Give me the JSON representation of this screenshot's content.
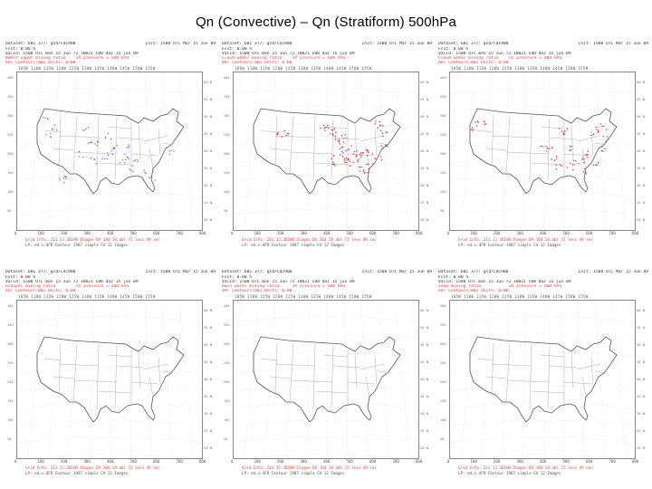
{
  "title": "Qn (Convective) – Qn (Stratiform)  500hPa",
  "colors": {
    "header_red": "#dd4444",
    "convective_blue": "#6666dd",
    "stratiform_red": "#dd2222",
    "map_line": "#555555"
  },
  "panels": [
    {
      "dataset": "Dataset: 601  377: gsd/Cdc900",
      "init": "Init: 1500 UTC Mar 15 Jun 09",
      "fcst": "Fcst:    0.00 h",
      "valid": "Valid: 1500 UTC mon 15 Jun  72 10021 C00 daz 15 jun 09",
      "field": "Water vapor mixing ratio",
      "level": "at pressure = 500 hPa",
      "units": "AAT  Contours:001 Units: 0.00",
      "footer1": "Grid Info: 211  JJ  3D1HR Dlagon  DX 104  18 abl  72 levs  49 sec",
      "footer2": "LP: ed.v.4FR Contour 1987 simple CA 12 Images",
      "points": "conv"
    },
    {
      "dataset": "Dataset: 601  377: gsd/Cdc900",
      "init": "Init: 1500 UTC Mar 15 Jun 09",
      "fcst": "Fcst:    0.00 h",
      "valid": "Valid: 1500 UTC mon 15 Jun  72 10021 C00 daz 15 jun 09",
      "field": "Cloud water mixing ratio",
      "level": "at pressure = 500 hPa",
      "units": "AAT  Contours:001 Units: 0.00",
      "footer1": "Grid Info: 211  JJ  3D1HR Dlagon  DX 104  18 abl  72 levs  49 sec",
      "footer2": "LP: ed.v.4FR Contour 1987 simple CA 12 Images",
      "points": "strat1"
    },
    {
      "dataset": "Dataset: 601  377: gsd/Cdc900",
      "init": "Init: 1500 UTC Mar 15 Jun 09",
      "fcst": "Fcst:    0.00 h",
      "valid": "Valid: 1500 UTC mon 15 Jun  72 10021 C00 daz 15 jun 09",
      "field": "Cloud water mixing ratio",
      "level": "at pressure = 500 hPa",
      "units": "AAT  Contours:001 Units: 0.00",
      "footer1": "Grid Info: 211  JJ  3D1HR Dlagon  DX 104  18 abl  72 levs  49 sec",
      "footer2": "LP: ed.v.4FR Contour 1987 simple CA 12 Images",
      "points": "strat2"
    },
    {
      "dataset": "Dataset: 601  377: gsd/Cdc900",
      "init": "Init: 1500 UTC Mar 15 Jun 09",
      "fcst": "Fcst:    0.00 h",
      "valid": "Valid: 1500 UTC mon 15 Jun  72 10021 C00 daz 15 jun 09",
      "field": "Graupel mixing ratio",
      "level": "at pressure = 500 hPa",
      "units": "AAT  Contours:001 Units: 0.00",
      "footer1": "Grid Info: 211  JJ  3D1HR Dlagon  DX 104  18 abl  72 levs  49 sec",
      "footer2": "LP: ed.v.4FR Contour 1987 simple CA 12 Images",
      "points": "none"
    },
    {
      "dataset": "Dataset: 601  377: gsd/Cdc900",
      "init": "Init: 1500 UTC Mar 15 Jun 09",
      "fcst": "Fcst:    0.00 h",
      "valid": "Valid: 1500 UTC mon 15 Jun  72 10021 C00 daz 15 jun 09",
      "field": "Rain water mixing ratio",
      "level": "at pressure = 500 hPa",
      "units": "AAT  Contours:001 Units: 0.00",
      "footer1": "Grid Info: 211  JJ  3D1HR Dlagon  DX 104  18 abl  72 levs  49 sec",
      "footer2": "LP: ed.v.4FR Contour 1987 simple CA 12 Images",
      "points": "none"
    },
    {
      "dataset": "Dataset: 601  377: gsd/Cdc900",
      "init": "Init: 1500 UTC Mar 15 Jun 09",
      "fcst": "Fcst:    0.00 h",
      "valid": "Valid: 1500 UTC mon 15 Jun  72 10021 C00 daz 15 jun 09",
      "field": "Snow mixing ratio",
      "level": "at pressure = 500 hPa",
      "units": "AAT  Contours:001 Units: 0.00",
      "footer1": "Grid Info: 211  JJ  3D1HR Dlagon  DX 104  18 abl  72 levs  49 sec",
      "footer2": "LP: ed.v.4FR Contour 1987 simple CA 12 Images",
      "points": "none"
    }
  ],
  "lon_labels": [
    "105",
    "110",
    "115",
    "120",
    "125",
    "130",
    "135",
    "140",
    "145",
    "150",
    "155"
  ],
  "lat_labels": [
    "60 N",
    "55 N",
    "50 N",
    "45 N",
    "40 N",
    "35 N",
    "30 N",
    "25 N",
    "20 N"
  ],
  "left_ticks": [
    "400",
    "350",
    "300",
    "250",
    "200",
    "150",
    "100",
    "50"
  ]
}
